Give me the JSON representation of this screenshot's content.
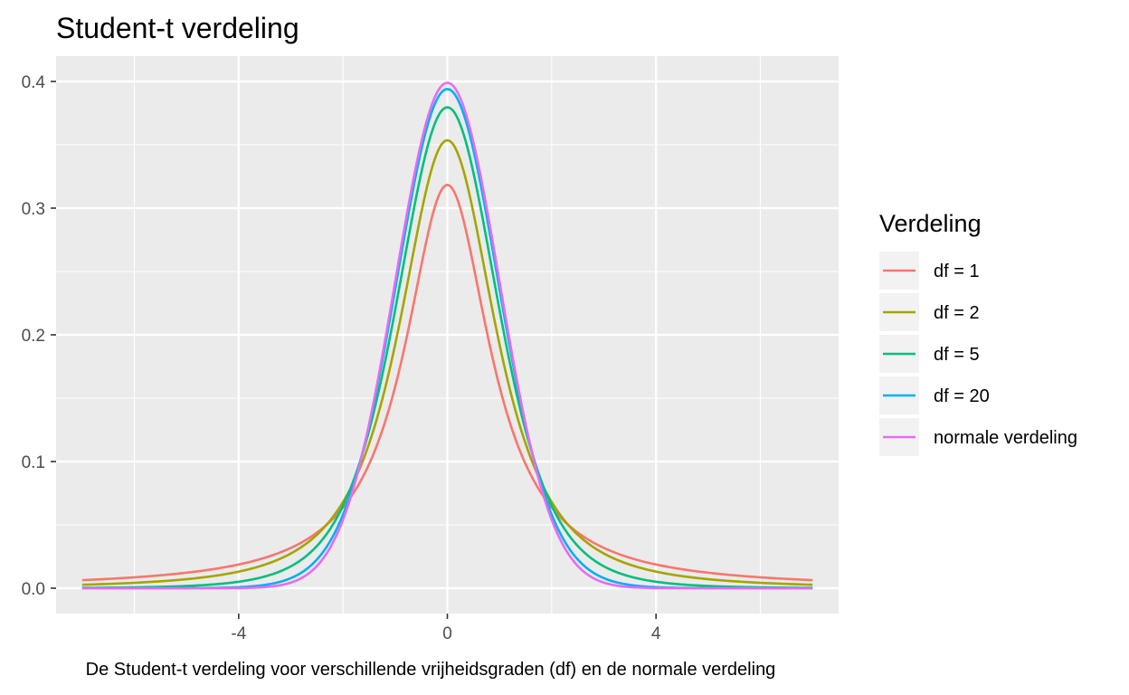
{
  "chart_data": {
    "type": "line",
    "title": "Student-t verdeling",
    "caption": "De Student-t verdeling voor verschillende vrijheidsgraden (df) en de normale verdeling",
    "xlabel": "",
    "ylabel": "",
    "xlim": [
      -7.5,
      7.5
    ],
    "ylim": [
      -0.02,
      0.42
    ],
    "x_range": [
      -7,
      7
    ],
    "x_ticks": [
      -4,
      0,
      4
    ],
    "x_tick_labels": [
      "-4",
      "0",
      "4"
    ],
    "y_ticks": [
      0.0,
      0.1,
      0.2,
      0.3,
      0.4
    ],
    "y_tick_labels": [
      "0.0",
      "0.1",
      "0.2",
      "0.3",
      "0.4"
    ],
    "grid": true,
    "legend": {
      "title": "Verdeling",
      "position": "right"
    },
    "series": [
      {
        "name": "df = 1",
        "df": 1,
        "color": "#F8766D"
      },
      {
        "name": "df = 2",
        "df": 2,
        "color": "#A3A500"
      },
      {
        "name": "df = 5",
        "df": 5,
        "color": "#00BF7D"
      },
      {
        "name": "df = 20",
        "df": 20,
        "color": "#00B0F6"
      },
      {
        "name": "normale verdeling",
        "df": null,
        "color": "#E76BF3"
      }
    ],
    "background_color": "#EBEBEB",
    "grid_color": "#FFFFFF"
  }
}
